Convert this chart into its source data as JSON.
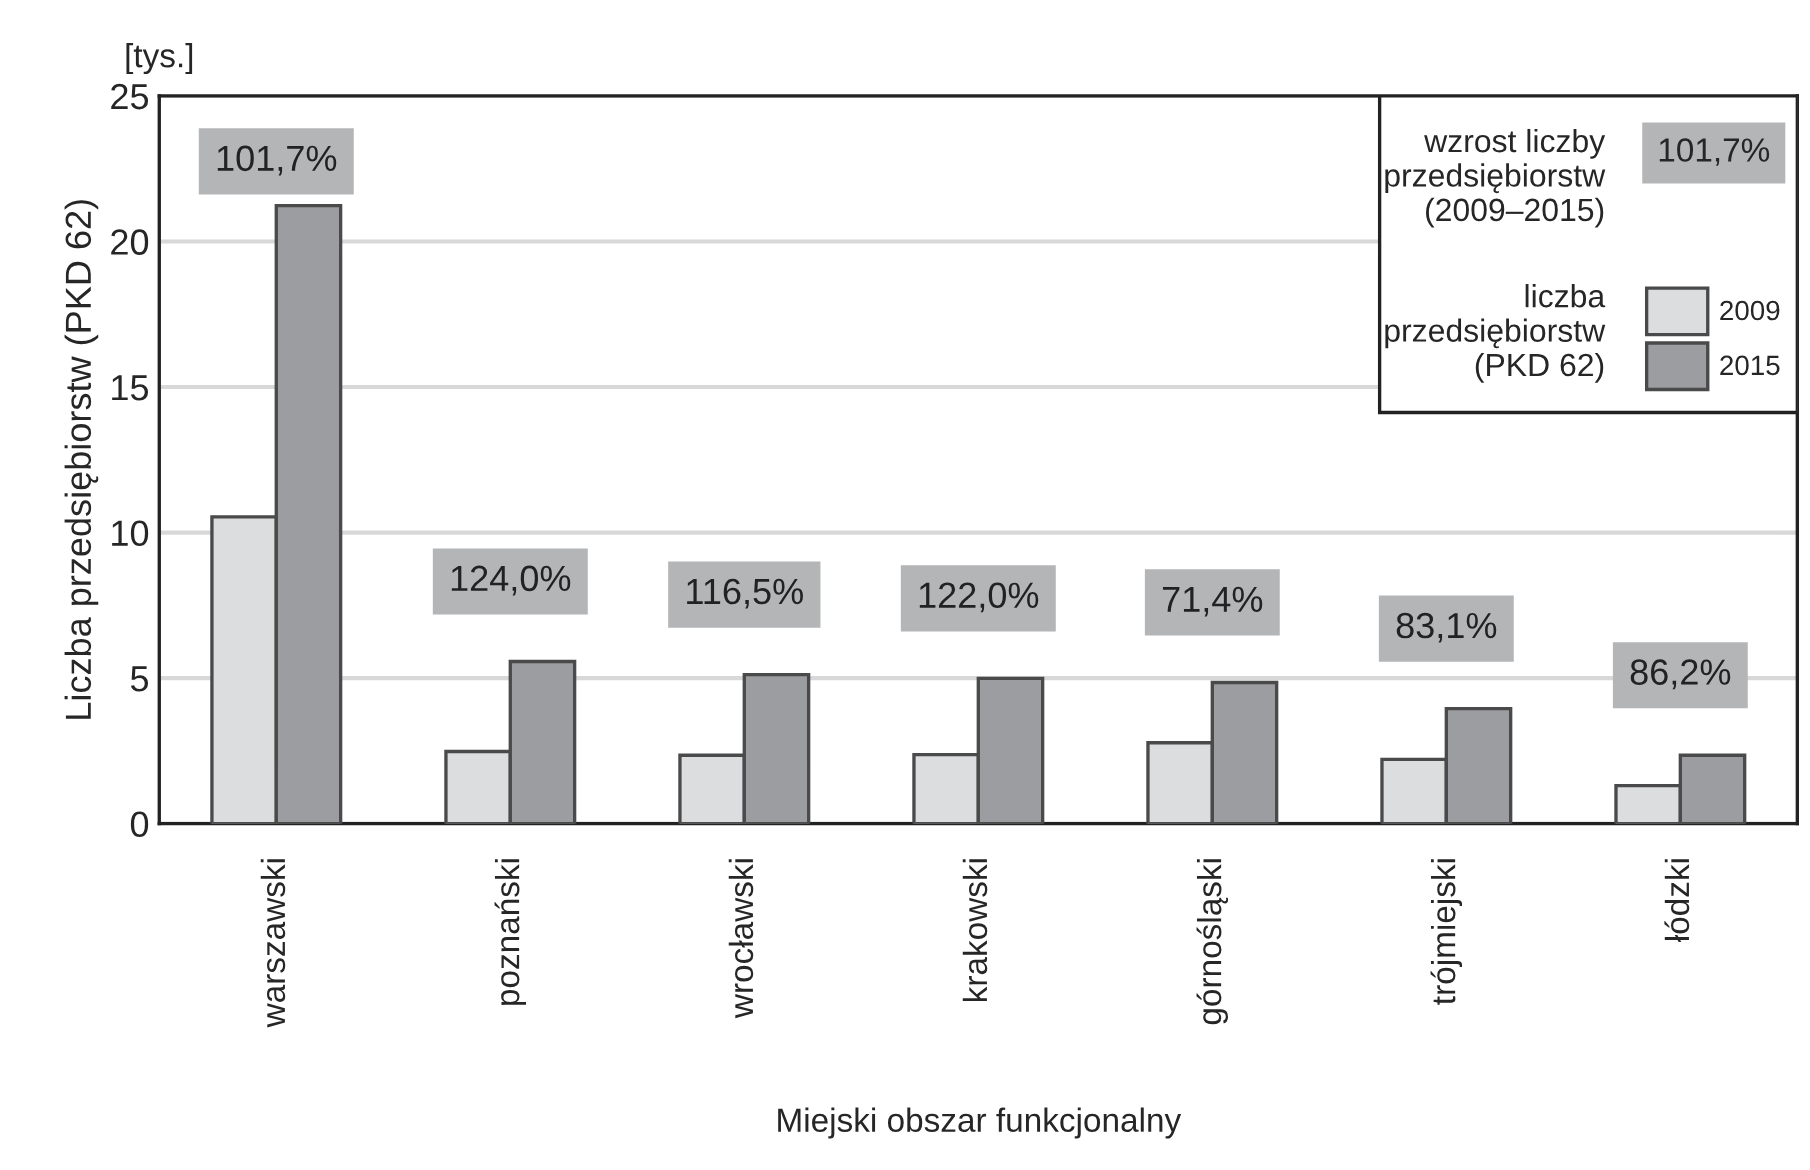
{
  "chart_data": {
    "type": "bar",
    "xlabel": "Miejski obszar funkcjonalny",
    "ylabel": "Liczba przedsiębiorstw (PKD 62)",
    "categories": [
      "warszawski",
      "poznański",
      "wrocławski",
      "krakowski",
      "górnośląski",
      "trójmiejski",
      "łódzki"
    ],
    "series": [
      {
        "name": "2009",
        "color": "#dcdddf",
        "values": [
          10.54,
          2.48,
          2.35,
          2.37,
          2.78,
          2.21,
          1.31
        ]
      },
      {
        "name": "2015",
        "color": "#9c9da1",
        "values": [
          21.23,
          5.57,
          5.12,
          4.99,
          4.85,
          3.95,
          2.35
        ]
      }
    ],
    "ylim": [
      0,
      25
    ],
    "yticks": [
      0,
      5,
      10,
      15,
      20,
      25
    ],
    "grid": "y",
    "legend": "top right",
    "annotations": [
      "101,7%",
      "124,0%",
      "116,5%",
      "122,0%",
      "71,4%",
      "83,1%",
      "86,2%",
      "[tys.]",
      "wzrost liczby\nprzedsiębiorstw\n(2009–2015)",
      "101,7%",
      "liczba\nprzedsiębiorstw\n(PKD 62)"
    ]
  }
}
